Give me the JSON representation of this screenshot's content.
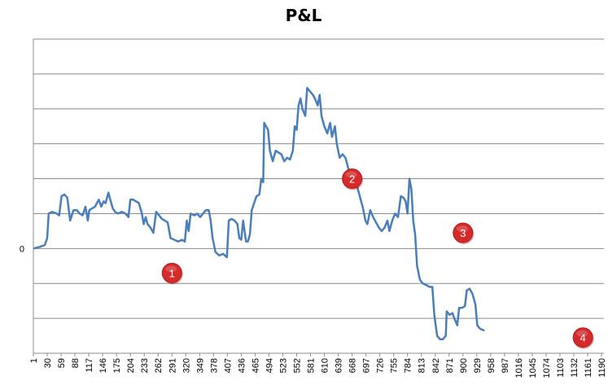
{
  "chart_data": {
    "type": "line",
    "title": "P&L",
    "xlabel": "",
    "ylabel": "",
    "x_ticks": [
      "1",
      "30",
      "59",
      "88",
      "117",
      "146",
      "175",
      "204",
      "233",
      "262",
      "291",
      "320",
      "349",
      "378",
      "407",
      "436",
      "465",
      "494",
      "523",
      "552",
      "581",
      "610",
      "639",
      "668",
      "697",
      "726",
      "755",
      "784",
      "813",
      "842",
      "871",
      "900",
      "929",
      "958",
      "987",
      "1016",
      "1045",
      "1074",
      "1103",
      "1132",
      "1161",
      "1190"
    ],
    "y_labels": [
      "0"
    ],
    "xlim": [
      1,
      1195
    ],
    "ylim": [
      -3,
      6
    ],
    "grid": "horizontal",
    "legend": "none",
    "series": [
      {
        "color": "#4a7ebb",
        "points": [
          [
            1,
            0.0
          ],
          [
            15,
            0.05
          ],
          [
            25,
            0.1
          ],
          [
            30,
            0.3
          ],
          [
            33,
            1.0
          ],
          [
            40,
            1.05
          ],
          [
            50,
            1.0
          ],
          [
            55,
            0.95
          ],
          [
            60,
            1.5
          ],
          [
            66,
            1.55
          ],
          [
            72,
            1.45
          ],
          [
            78,
            0.8
          ],
          [
            85,
            1.1
          ],
          [
            92,
            1.1
          ],
          [
            98,
            1.0
          ],
          [
            104,
            0.95
          ],
          [
            110,
            1.2
          ],
          [
            115,
            0.8
          ],
          [
            118,
            1.1
          ],
          [
            124,
            1.15
          ],
          [
            130,
            1.2
          ],
          [
            138,
            1.4
          ],
          [
            143,
            1.2
          ],
          [
            148,
            1.35
          ],
          [
            152,
            1.3
          ],
          [
            158,
            1.6
          ],
          [
            162,
            1.4
          ],
          [
            167,
            1.15
          ],
          [
            172,
            1.05
          ],
          [
            178,
            1.0
          ],
          [
            186,
            1.05
          ],
          [
            194,
            1.0
          ],
          [
            200,
            0.9
          ],
          [
            204,
            1.4
          ],
          [
            210,
            1.4
          ],
          [
            216,
            1.35
          ],
          [
            222,
            1.3
          ],
          [
            228,
            1.0
          ],
          [
            232,
            0.7
          ],
          [
            236,
            0.9
          ],
          [
            240,
            0.7
          ],
          [
            246,
            0.6
          ],
          [
            252,
            0.45
          ],
          [
            258,
            1.05
          ],
          [
            264,
            0.95
          ],
          [
            270,
            0.85
          ],
          [
            276,
            0.8
          ],
          [
            282,
            0.75
          ],
          [
            288,
            0.3
          ],
          [
            296,
            0.25
          ],
          [
            304,
            0.2
          ],
          [
            312,
            0.25
          ],
          [
            318,
            0.2
          ],
          [
            322,
            0.8
          ],
          [
            326,
            0.5
          ],
          [
            330,
            1.0
          ],
          [
            338,
            0.95
          ],
          [
            344,
            1.0
          ],
          [
            350,
            0.9
          ],
          [
            356,
            1.0
          ],
          [
            362,
            1.1
          ],
          [
            368,
            1.1
          ],
          [
            372,
            0.8
          ],
          [
            376,
            0.3
          ],
          [
            382,
            -0.1
          ],
          [
            390,
            -0.2
          ],
          [
            398,
            -0.15
          ],
          [
            406,
            -0.25
          ],
          [
            410,
            0.8
          ],
          [
            416,
            0.85
          ],
          [
            422,
            0.8
          ],
          [
            428,
            0.7
          ],
          [
            432,
            0.3
          ],
          [
            436,
            0.25
          ],
          [
            440,
            0.8
          ],
          [
            446,
            0.2
          ],
          [
            450,
            0.2
          ],
          [
            454,
            0.4
          ],
          [
            458,
            1.1
          ],
          [
            463,
            1.3
          ],
          [
            468,
            1.5
          ],
          [
            474,
            1.55
          ],
          [
            478,
            2.0
          ],
          [
            482,
            1.9
          ],
          [
            484,
            3.6
          ],
          [
            488,
            3.5
          ],
          [
            492,
            3.4
          ],
          [
            496,
            2.8
          ],
          [
            502,
            2.5
          ],
          [
            508,
            2.8
          ],
          [
            514,
            2.75
          ],
          [
            520,
            2.7
          ],
          [
            526,
            2.5
          ],
          [
            532,
            2.6
          ],
          [
            538,
            2.55
          ],
          [
            544,
            2.8
          ],
          [
            548,
            3.5
          ],
          [
            552,
            3.4
          ],
          [
            556,
            4.1
          ],
          [
            560,
            4.3
          ],
          [
            564,
            4.0
          ],
          [
            570,
            3.8
          ],
          [
            574,
            4.6
          ],
          [
            580,
            4.5
          ],
          [
            586,
            4.4
          ],
          [
            590,
            4.3
          ],
          [
            596,
            4.1
          ],
          [
            600,
            4.4
          ],
          [
            604,
            3.8
          ],
          [
            610,
            3.5
          ],
          [
            616,
            3.3
          ],
          [
            622,
            3.6
          ],
          [
            626,
            3.2
          ],
          [
            632,
            3.5
          ],
          [
            636,
            3.0
          ],
          [
            642,
            2.6
          ],
          [
            648,
            2.7
          ],
          [
            654,
            2.6
          ],
          [
            660,
            2.3
          ],
          [
            666,
            2.0
          ],
          [
            672,
            1.9
          ],
          [
            678,
            1.8
          ],
          [
            684,
            1.5
          ],
          [
            690,
            1.2
          ],
          [
            696,
            0.8
          ],
          [
            700,
            0.7
          ],
          [
            706,
            1.1
          ],
          [
            712,
            0.9
          ],
          [
            718,
            0.75
          ],
          [
            724,
            0.6
          ],
          [
            730,
            0.5
          ],
          [
            736,
            0.6
          ],
          [
            742,
            0.8
          ],
          [
            746,
            0.5
          ],
          [
            752,
            0.8
          ],
          [
            758,
            1.0
          ],
          [
            764,
            0.9
          ],
          [
            770,
            1.5
          ],
          [
            776,
            1.45
          ],
          [
            780,
            1.35
          ],
          [
            784,
            1.0
          ],
          [
            788,
            2.0
          ],
          [
            792,
            1.7
          ],
          [
            796,
            0.8
          ],
          [
            800,
            0.4
          ],
          [
            804,
            -0.5
          ],
          [
            810,
            -0.9
          ],
          [
            816,
            -1.0
          ],
          [
            824,
            -1.05
          ],
          [
            830,
            -1.1
          ],
          [
            836,
            -1.1
          ],
          [
            840,
            -1.9
          ],
          [
            846,
            -2.5
          ],
          [
            852,
            -2.6
          ],
          [
            858,
            -2.6
          ],
          [
            864,
            -2.5
          ],
          [
            866,
            -1.8
          ],
          [
            872,
            -1.9
          ],
          [
            878,
            -1.85
          ],
          [
            882,
            -2.0
          ],
          [
            888,
            -2.2
          ],
          [
            892,
            -1.7
          ],
          [
            898,
            -1.7
          ],
          [
            904,
            -1.65
          ],
          [
            908,
            -1.2
          ],
          [
            914,
            -1.15
          ],
          [
            920,
            -1.3
          ],
          [
            926,
            -1.6
          ],
          [
            930,
            -2.2
          ],
          [
            936,
            -2.3
          ],
          [
            945,
            -2.35
          ]
        ]
      }
    ],
    "annotations": [
      {
        "label": "1",
        "x": 291,
        "y": -0.7
      },
      {
        "label": "2",
        "x": 668,
        "y": 2.0
      },
      {
        "label": "3",
        "x": 900,
        "y": 0.45
      },
      {
        "label": "4",
        "x": 1151,
        "y": -2.55
      }
    ]
  }
}
